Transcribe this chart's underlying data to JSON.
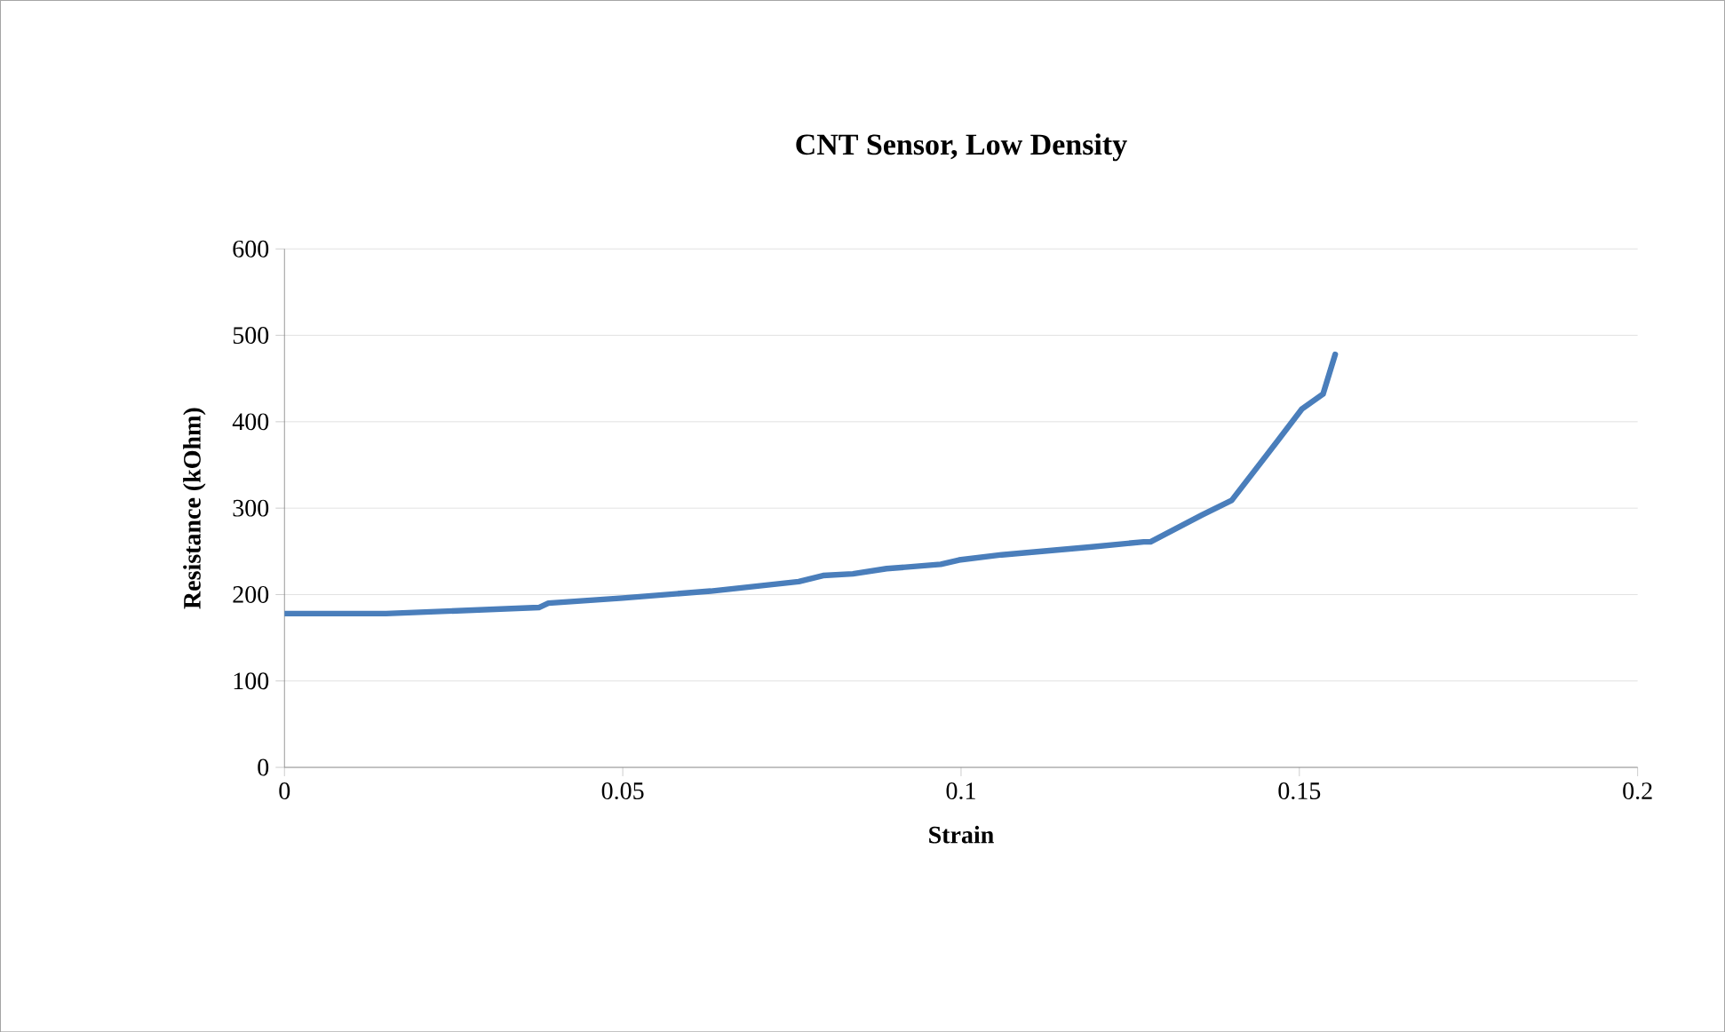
{
  "chart_data": {
    "type": "line",
    "title": "CNT Sensor, Low Density",
    "xlabel": "Strain",
    "ylabel": "Resistance (kOhm)",
    "xlim": [
      0,
      0.2
    ],
    "xticks": [
      0,
      0.05,
      0.1,
      0.15,
      0.2
    ],
    "ylim": [
      0,
      600
    ],
    "yticks": [
      0,
      100,
      200,
      300,
      400,
      500,
      600
    ],
    "grid": "y",
    "marker": "none",
    "line_style": "solid",
    "series": [
      {
        "color": "#4a7ebb",
        "x": [
          0,
          0.015,
          0.0376,
          0.039,
          0.05,
          0.063,
          0.076,
          0.0796,
          0.084,
          0.089,
          0.097,
          0.0997,
          0.106,
          0.119,
          0.127,
          0.128,
          0.1356,
          0.14,
          0.147,
          0.1504,
          0.1535,
          0.1553
        ],
        "values": [
          178,
          178,
          185,
          190,
          196,
          204,
          215,
          222,
          224,
          230,
          235,
          240,
          246,
          255,
          261,
          261,
          292,
          309,
          380,
          415,
          432,
          478
        ]
      }
    ]
  }
}
